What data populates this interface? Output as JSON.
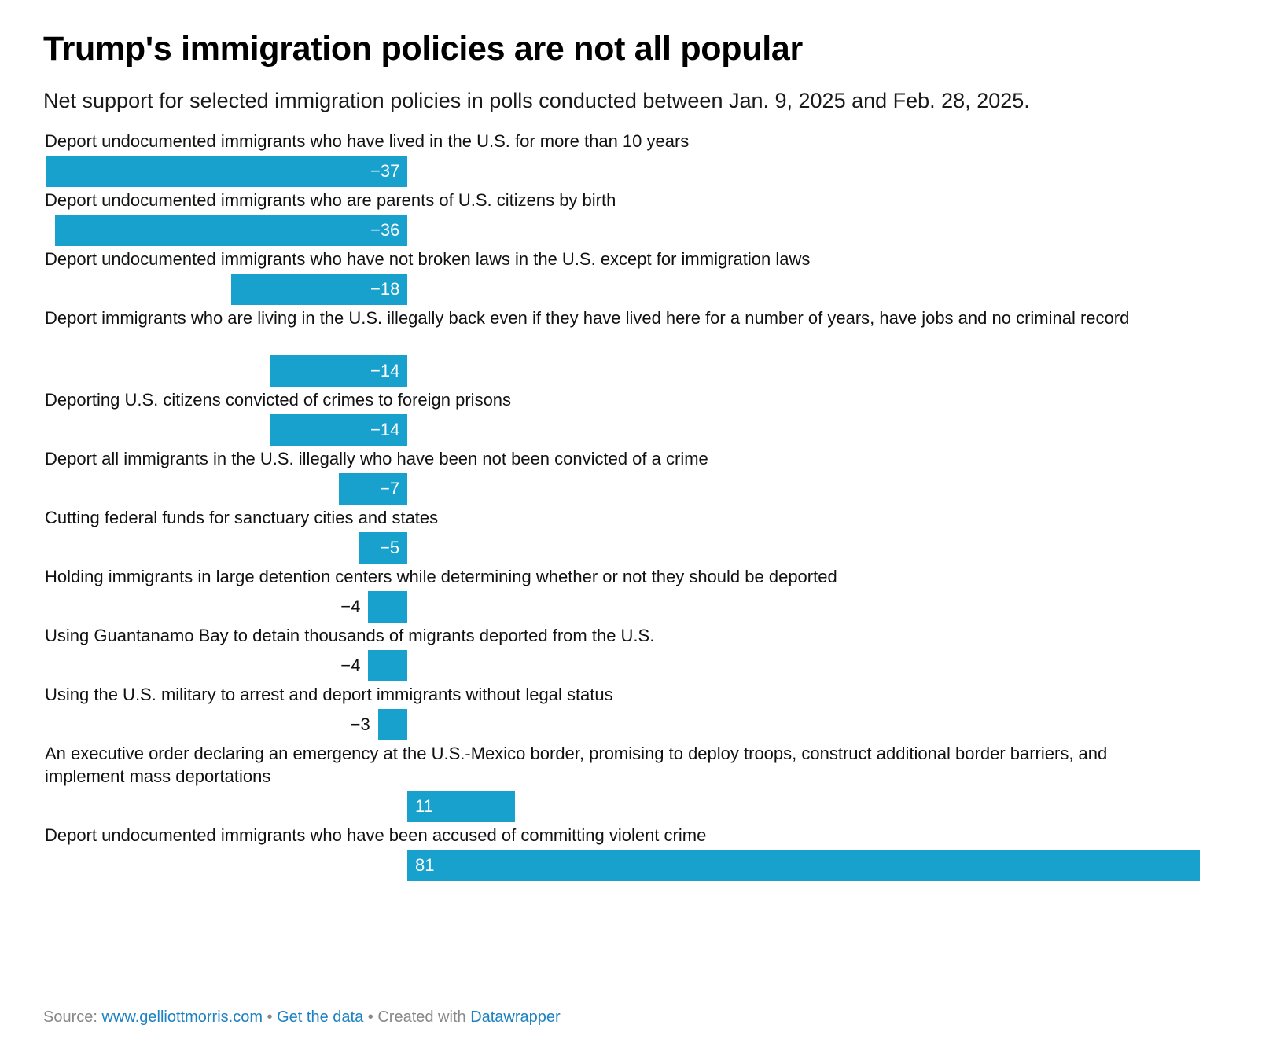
{
  "title": "Trump's immigration policies are not all popular",
  "subtitle": "Net support for selected immigration policies in polls conducted between Jan. 9, 2025 and Feb. 28, 2025.",
  "chart_data": {
    "type": "bar",
    "orientation": "horizontal",
    "title": "Trump's immigration policies are not all popular",
    "subtitle": "Net support for selected immigration policies in polls conducted between Jan. 9, 2025 and Feb. 28, 2025.",
    "color": "#18a1cd",
    "categories": [
      "Deport undocumented immigrants who have lived in the U.S. for more than 10 years",
      "Deport undocumented immigrants who are parents of U.S. citizens by birth",
      "Deport undocumented immigrants who have not broken laws in the U.S. except for immigration laws",
      "Deport immigrants who are living in the U.S. illegally back even if they have lived here for a number of years, have jobs and no criminal record",
      "Deporting U.S. citizens convicted of crimes to foreign prisons",
      "Deport all immigrants in the U.S. illegally who have been not been convicted of a crime",
      "Cutting federal funds for sanctuary cities and states",
      "Holding immigrants in large detention centers while determining whether or not they should be deported",
      "Using Guantanamo Bay to detain thousands of migrants deported from the U.S.",
      "Using the U.S. military to arrest and deport immigrants without legal status",
      "An executive order declaring an emergency at the U.S.-Mexico border, promising to deploy troops, construct additional border barriers, and implement mass deportations",
      "Deport undocumented immigrants who have been accused of committing violent crime"
    ],
    "values": [
      -37,
      -36,
      -18,
      -14,
      -14,
      -7,
      -5,
      -4,
      -4,
      -3,
      11,
      81
    ],
    "value_labels": [
      "−37",
      "−36",
      "−18",
      "−14",
      "−14",
      "−7",
      "−5",
      "−4",
      "−4",
      "−3",
      "11",
      "81"
    ],
    "xlim": [
      -37,
      81
    ],
    "grid": false,
    "legend": "none"
  },
  "footer": {
    "source_label": "Source:",
    "source_link": "www.gelliottmorris.com",
    "separator": "•",
    "data_link": "Get the data",
    "created_label": "Created with",
    "tool_link": "Datawrapper"
  }
}
